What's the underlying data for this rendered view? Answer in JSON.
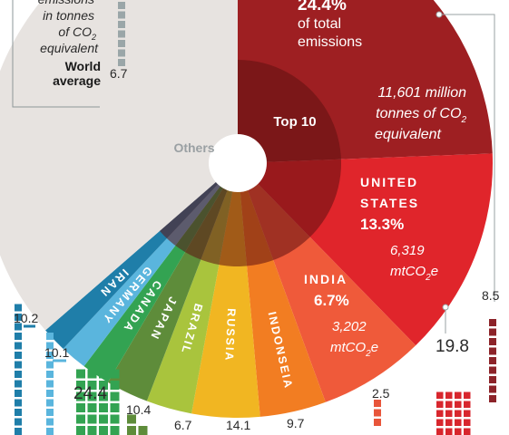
{
  "colors": {
    "background": "#ffffff",
    "others": "#e7e3e0",
    "china": "#9e1f22",
    "top10_core": "#5e1011",
    "us": "#e0252b",
    "india": "#ef5a3a",
    "indonesia": "#f27d22",
    "russia": "#f1b622",
    "brazil": "#a9c43d",
    "japan": "#5e8c3a",
    "canada": "#33a352",
    "germany": "#5ab5dd",
    "iran": "#1f7ea9",
    "per_capita_china": "#8c2329",
    "per_capita_us": "#d8262d",
    "per_capita_india": "#e8553a",
    "legend_box": "#9aa6a8"
  },
  "legend": {
    "line1": "emissions",
    "line2": "in tonnes",
    "line3_prefix": "of CO",
    "line3_sub": "2",
    "line4": "equivalent",
    "world_line1": "World",
    "world_line2": "average",
    "world_value": "6.7"
  },
  "chart_data": {
    "type": "pie",
    "top10_label": "Top 10",
    "others_label": "Others",
    "china": {
      "share_text": "24.4%",
      "line1": "of total",
      "line2": "emissions",
      "amount_line1": "11,601 million",
      "amount_line2_prefix": "tonnes of CO",
      "amount_line2_sub": "2",
      "amount_line3": "equivalent"
    },
    "slices": [
      {
        "key": "china",
        "label": "",
        "share": 24.4,
        "per_capita": "8.5"
      },
      {
        "key": "us",
        "label_line1": "UNITED",
        "label_line2": "STATES",
        "share": 13.3,
        "share_text": "13.3%",
        "amount": "6,319",
        "unit_prefix": "mtCO",
        "unit_sub": "2",
        "unit_suffix": "e",
        "per_capita": "19.8"
      },
      {
        "key": "india",
        "label": "INDIA",
        "share": 6.7,
        "share_text": "6.7%",
        "amount": "3,202",
        "unit_prefix": "mtCO",
        "unit_sub": "2",
        "unit_suffix": "e",
        "per_capita": "2.5"
      },
      {
        "key": "indonesia",
        "label": "INDONSEIA",
        "share": 4.2,
        "per_capita": "9.7"
      },
      {
        "key": "russia",
        "label": "RUSSIA",
        "share": 4.3,
        "per_capita": "14.1"
      },
      {
        "key": "brazil",
        "label": "BRAZIL",
        "share": 2.9,
        "per_capita": "6.7"
      },
      {
        "key": "japan",
        "label": "JAPAN",
        "share": 2.7,
        "per_capita": "10.4"
      },
      {
        "key": "canada",
        "label": "CANADA",
        "share": 1.8,
        "per_capita": "24.4"
      },
      {
        "key": "germany",
        "label": "GERMANY",
        "share": 1.7,
        "per_capita": "10.1"
      },
      {
        "key": "iran",
        "label": "IRAN",
        "share": 1.6,
        "per_capita": "10.2"
      }
    ]
  }
}
